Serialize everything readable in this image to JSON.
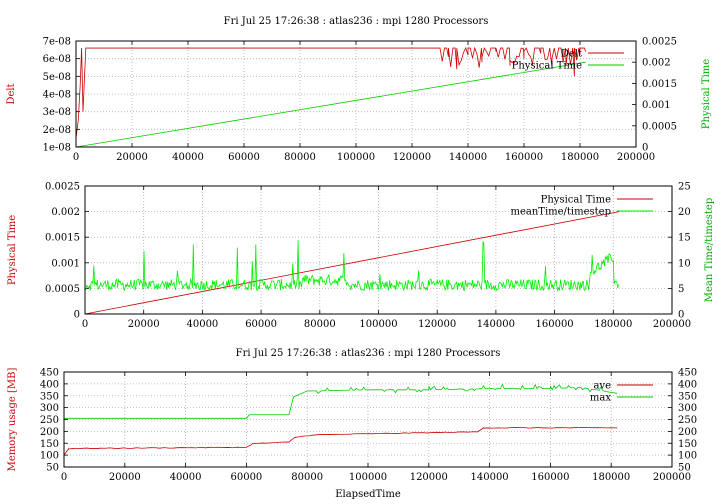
{
  "chart_data": [
    {
      "type": "line",
      "title": "Fri Jul 25 17:26:38 : atlas236 : mpi 1280 Processors",
      "xlabel": "",
      "y1label": "Delt",
      "y2label": "Physical Time",
      "xlim": [
        0,
        200000
      ],
      "y1lim": [
        1e-08,
        7e-08
      ],
      "y2lim": [
        0,
        0.0025
      ],
      "xticks": [
        "0",
        "20000",
        "40000",
        "60000",
        "80000",
        "100000",
        "120000",
        "140000",
        "160000",
        "180000",
        "200000"
      ],
      "y1ticks": [
        "1e-08",
        "2e-08",
        "3e-08",
        "4e-08",
        "5e-08",
        "6e-08",
        "7e-08"
      ],
      "y2ticks": [
        "0",
        "0.0005",
        "0.001",
        "0.0015",
        "0.002",
        "0.0025"
      ],
      "grid": true,
      "legend_position": "top-right",
      "series": [
        {
          "name": "Delt",
          "axis": "y1",
          "color": "#cc0000",
          "x": [
            0,
            800,
            1500,
            2000,
            2500,
            3500,
            5000,
            130000,
            133000,
            136000,
            140000,
            145000,
            150000,
            155000,
            160000,
            163000,
            166000,
            170000,
            175000,
            178000,
            180000,
            182000
          ],
          "y": [
            1.5e-08,
            2.5e-08,
            4.5e-08,
            6.6e-08,
            3e-08,
            6.6e-08,
            6.6e-08,
            6.6e-08,
            6.1e-08,
            5.4e-08,
            6.2e-08,
            5.8e-08,
            6.4e-08,
            5.6e-08,
            6e-08,
            5.7e-08,
            6.3e-08,
            5.5e-08,
            6e-08,
            5e-08,
            6.2e-08,
            6.4e-08
          ]
        },
        {
          "name": "Physical Time",
          "axis": "y2",
          "color": "#00cc00",
          "x": [
            0,
            182000
          ],
          "y": [
            0,
            0.002
          ]
        }
      ]
    },
    {
      "type": "line",
      "title": "",
      "xlabel": "",
      "y1label": "Physical Time",
      "y2label": "Mean Time/timestep",
      "xlim": [
        0,
        200000
      ],
      "y1lim": [
        0,
        0.0025
      ],
      "y2lim": [
        0,
        25
      ],
      "xticks": [
        "0",
        "20000",
        "40000",
        "60000",
        "80000",
        "100000",
        "120000",
        "140000",
        "160000",
        "180000",
        "200000"
      ],
      "y1ticks": [
        "0",
        "0.0005",
        "0.001",
        "0.0015",
        "0.002",
        "0.0025"
      ],
      "y2ticks": [
        "0",
        "5",
        "10",
        "15",
        "20",
        "25"
      ],
      "grid": true,
      "legend_position": "top-right",
      "series": [
        {
          "name": "Physical Time",
          "axis": "y1",
          "color": "#cc0000",
          "x": [
            0,
            182000
          ],
          "y": [
            0,
            0.002
          ]
        },
        {
          "name": "meanTime/timestep",
          "axis": "y2",
          "color": "#00ee00",
          "x": [
            0,
            10000,
            30000,
            50000,
            70000,
            78000,
            90000,
            110000,
            130000,
            150000,
            170000,
            175000,
            178000,
            182000
          ],
          "y": [
            5.5,
            6,
            5.8,
            6,
            6.2,
            7,
            6.5,
            6.2,
            6.3,
            6.2,
            6.5,
            10,
            12,
            5
          ]
        }
      ]
    },
    {
      "type": "line",
      "title": "Fri Jul 25 17:26:38 : atlas236 : mpi 1280 Processors",
      "xlabel": "ElapsedTime",
      "y1label": "Memory usage [MB]",
      "y2label": "",
      "xlim": [
        0,
        200000
      ],
      "y1lim": [
        50,
        450
      ],
      "y2lim": [
        50,
        450
      ],
      "xticks": [
        "0",
        "20000",
        "40000",
        "60000",
        "80000",
        "100000",
        "120000",
        "140000",
        "160000",
        "180000",
        "200000"
      ],
      "y1ticks": [
        "50",
        "100",
        "150",
        "200",
        "250",
        "300",
        "350",
        "400",
        "450"
      ],
      "y2ticks": [
        "50",
        "100",
        "150",
        "200",
        "250",
        "300",
        "350",
        "400",
        "450"
      ],
      "grid": true,
      "legend_position": "top-right",
      "series": [
        {
          "name": "ave",
          "axis": "y1",
          "color": "#cc0000",
          "x": [
            0,
            1500,
            3000,
            60000,
            62000,
            74000,
            76000,
            82000,
            100000,
            136000,
            138000,
            182000
          ],
          "y": [
            100,
            127,
            128,
            133,
            148,
            155,
            175,
            185,
            190,
            198,
            215,
            215
          ]
        },
        {
          "name": "max",
          "axis": "y1",
          "color": "#00cc00",
          "x": [
            0,
            60000,
            61000,
            74000,
            75500,
            80000,
            100000,
            120000,
            140000,
            160000,
            170000,
            182000
          ],
          "y": [
            255,
            255,
            270,
            270,
            345,
            370,
            375,
            375,
            380,
            380,
            385,
            360
          ]
        }
      ]
    }
  ]
}
